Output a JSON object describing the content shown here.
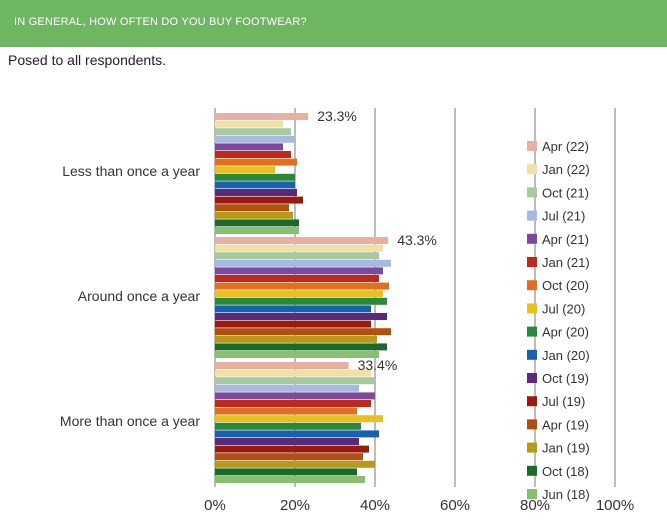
{
  "header": {
    "title": "IN GENERAL, HOW OFTEN DO YOU BUY FOOTWEAR?"
  },
  "subtitle": "Posed to all respondents.",
  "chart_data": {
    "type": "bar",
    "orientation": "horizontal",
    "categories": [
      "Less than once a year",
      "Around once a year",
      "More than once a year"
    ],
    "xlim": [
      0,
      100
    ],
    "ticks": [
      "0%",
      "20%",
      "40%",
      "60%",
      "80%",
      "100%"
    ],
    "grid": true,
    "legend_position": "right",
    "series": [
      {
        "name": "Apr (22)",
        "color": "#e8b0a0",
        "values": [
          23.3,
          43.3,
          33.4
        ]
      },
      {
        "name": "Jan (22)",
        "color": "#f0e0a8",
        "values": [
          17,
          42,
          39
        ]
      },
      {
        "name": "Oct (21)",
        "color": "#a8c8a0",
        "values": [
          19,
          41,
          40
        ]
      },
      {
        "name": "Jul (21)",
        "color": "#a8b8e0",
        "values": [
          20,
          44,
          36
        ]
      },
      {
        "name": "Apr (21)",
        "color": "#7a4a9c",
        "values": [
          17,
          42,
          40
        ]
      },
      {
        "name": "Jan (21)",
        "color": "#c0281c",
        "values": [
          19,
          41,
          39
        ]
      },
      {
        "name": "Oct (20)",
        "color": "#e07020",
        "values": [
          20.5,
          43.5,
          35.5
        ]
      },
      {
        "name": "Jul (20)",
        "color": "#e8c020",
        "values": [
          15,
          42,
          42
        ]
      },
      {
        "name": "Apr (20)",
        "color": "#2a8a3a",
        "values": [
          20,
          43,
          36.5
        ]
      },
      {
        "name": "Jan (20)",
        "color": "#1a60b0",
        "values": [
          20,
          39,
          41
        ]
      },
      {
        "name": "Oct (19)",
        "color": "#5a2a7a",
        "values": [
          20.5,
          43,
          36
        ]
      },
      {
        "name": "Jul (19)",
        "color": "#9a1a10",
        "values": [
          22,
          39,
          38.5
        ]
      },
      {
        "name": "Apr (19)",
        "color": "#b05010",
        "values": [
          18.5,
          44,
          37
        ]
      },
      {
        "name": "Jan (19)",
        "color": "#b89a18",
        "values": [
          19.5,
          40.5,
          40
        ]
      },
      {
        "name": "Oct (18)",
        "color": "#1a6a2a",
        "values": [
          21,
          43,
          35.5
        ]
      },
      {
        "name": "Jun (18)",
        "color": "#88c070",
        "values": [
          21,
          41,
          37.5
        ]
      }
    ],
    "data_labels": [
      "23.3%",
      "43.3%",
      "33.4%"
    ]
  }
}
